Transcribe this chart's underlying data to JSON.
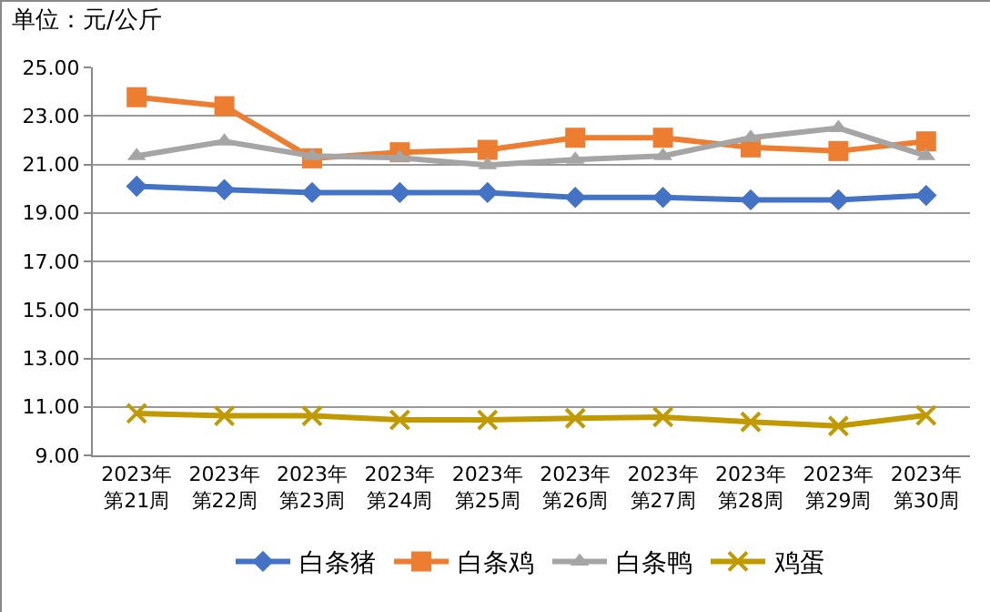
{
  "chart_data": {
    "type": "line",
    "title": "单位：元/公斤",
    "categories": [
      "2023年第21周",
      "2023年第22周",
      "2023年第23周",
      "2023年第24周",
      "2023年第25周",
      "2023年第26周",
      "2023年第27周",
      "2023年第28周",
      "2023年第29周",
      "2023年第30周"
    ],
    "series": [
      {
        "name": "白条猪",
        "color": "#4472c4",
        "marker": "diamond",
        "values": [
          20.1,
          19.96,
          19.84,
          19.84,
          19.84,
          19.64,
          19.64,
          19.54,
          19.54,
          19.72
        ]
      },
      {
        "name": "白条鸡",
        "color": "#ed7d31",
        "marker": "square",
        "values": [
          23.77,
          23.4,
          21.25,
          21.5,
          21.6,
          22.1,
          22.1,
          21.7,
          21.55,
          21.95
        ]
      },
      {
        "name": "白条鸭",
        "color": "#a5a5a5",
        "marker": "triangle",
        "values": [
          21.35,
          21.95,
          21.35,
          21.27,
          20.97,
          21.2,
          21.35,
          22.1,
          22.5,
          21.35
        ]
      },
      {
        "name": "鸡蛋",
        "color": "#c09a00",
        "marker": "cross",
        "values": [
          10.73,
          10.63,
          10.63,
          10.46,
          10.46,
          10.53,
          10.58,
          10.38,
          10.21,
          10.65
        ]
      }
    ],
    "ylim": [
      9,
      25
    ],
    "yticks": [
      {
        "value": 9,
        "label": "9.00"
      },
      {
        "value": 11,
        "label": "11.00"
      },
      {
        "value": 13,
        "label": "13.00"
      },
      {
        "value": 15,
        "label": "15.00"
      },
      {
        "value": 17,
        "label": "17.00"
      },
      {
        "value": 19,
        "label": "19.00"
      },
      {
        "value": 21,
        "label": "21.00"
      },
      {
        "value": 23,
        "label": "23.00"
      },
      {
        "value": 25,
        "label": "25.00"
      }
    ],
    "grid": "y",
    "legend": "bottom",
    "line_style": "solid"
  }
}
